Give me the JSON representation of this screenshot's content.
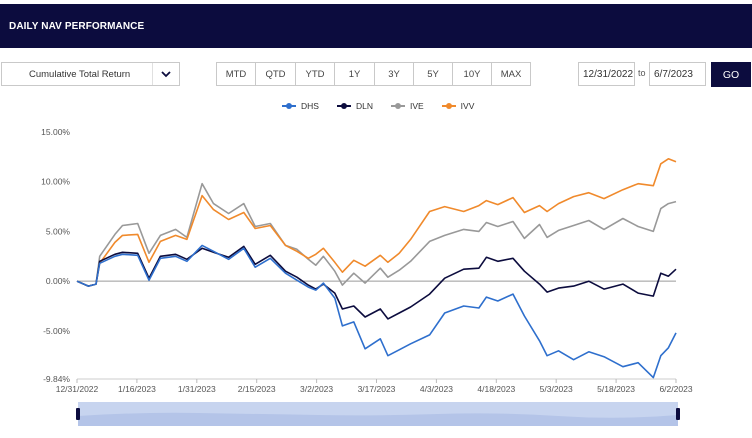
{
  "header": {
    "title": "DAILY NAV PERFORMANCE"
  },
  "controls": {
    "return_type": "Cumulative Total Return",
    "ranges": [
      "MTD",
      "QTD",
      "YTD",
      "1Y",
      "3Y",
      "5Y",
      "10Y",
      "MAX"
    ],
    "start_date": "12/31/2022",
    "to_label": "to",
    "end_date": "6/7/2023",
    "go_label": "GO"
  },
  "colors": {
    "DHS": "#2e6fcd",
    "DLN": "#0c0c3e",
    "IVE": "#999999",
    "IVV": "#f08a2c",
    "header": "#0c0c3e"
  },
  "chart_data": {
    "type": "line",
    "title": "",
    "xlabel": "",
    "ylabel": "",
    "x_ticks": [
      "12/31/2022",
      "1/16/2023",
      "1/31/2023",
      "2/15/2023",
      "3/2/2023",
      "3/17/2023",
      "4/3/2023",
      "4/18/2023",
      "5/3/2023",
      "5/18/2023",
      "6/2/2023"
    ],
    "y_ticks": [
      "15.00%",
      "10.00%",
      "5.00%",
      "0.00%",
      "-5.00%",
      "-9.84%"
    ],
    "y_tick_values": [
      15,
      10,
      5,
      0,
      -5,
      -9.84
    ],
    "ylim": [
      -9.84,
      15
    ],
    "x_domain": [
      "2022-12-31",
      "2023-06-07"
    ],
    "series": [
      {
        "name": "DHS",
        "points": [
          [
            "2022-12-31",
            0
          ],
          [
            "2023-01-03",
            -0.5
          ],
          [
            "2023-01-05",
            -0.3
          ],
          [
            "2023-01-06",
            1.8
          ],
          [
            "2023-01-10",
            2.5
          ],
          [
            "2023-01-12",
            2.7
          ],
          [
            "2023-01-16",
            2.6
          ],
          [
            "2023-01-19",
            0.1
          ],
          [
            "2023-01-22",
            2.3
          ],
          [
            "2023-01-26",
            2.5
          ],
          [
            "2023-01-29",
            2.0
          ],
          [
            "2023-02-02",
            3.6
          ],
          [
            "2023-02-05",
            3.0
          ],
          [
            "2023-02-09",
            2.2
          ],
          [
            "2023-02-13",
            3.3
          ],
          [
            "2023-02-16",
            1.4
          ],
          [
            "2023-02-20",
            2.3
          ],
          [
            "2023-02-24",
            0.8
          ],
          [
            "2023-02-27",
            0.1
          ],
          [
            "2023-03-02",
            -0.6
          ],
          [
            "2023-03-04",
            -0.9
          ],
          [
            "2023-03-06",
            -0.2
          ],
          [
            "2023-03-09",
            -1.7
          ],
          [
            "2023-03-11",
            -4.5
          ],
          [
            "2023-03-14",
            -4.1
          ],
          [
            "2023-03-17",
            -6.8
          ],
          [
            "2023-03-21",
            -5.8
          ],
          [
            "2023-03-23",
            -7.5
          ],
          [
            "2023-03-26",
            -6.9
          ],
          [
            "2023-03-29",
            -6.3
          ],
          [
            "2023-04-03",
            -5.4
          ],
          [
            "2023-04-07",
            -3.2
          ],
          [
            "2023-04-12",
            -2.5
          ],
          [
            "2023-04-16",
            -2.7
          ],
          [
            "2023-04-18",
            -1.6
          ],
          [
            "2023-04-21",
            -2.0
          ],
          [
            "2023-04-25",
            -1.3
          ],
          [
            "2023-04-28",
            -3.5
          ],
          [
            "2023-05-02",
            -6.0
          ],
          [
            "2023-05-04",
            -7.5
          ],
          [
            "2023-05-07",
            -7.0
          ],
          [
            "2023-05-11",
            -7.9
          ],
          [
            "2023-05-15",
            -7.1
          ],
          [
            "2023-05-19",
            -7.6
          ],
          [
            "2023-05-24",
            -8.6
          ],
          [
            "2023-05-28",
            -8.2
          ],
          [
            "2023-06-01",
            -9.7
          ],
          [
            "2023-06-03",
            -7.5
          ],
          [
            "2023-06-05",
            -6.7
          ],
          [
            "2023-06-07",
            -5.2
          ]
        ]
      },
      {
        "name": "DLN",
        "points": [
          [
            "2022-12-31",
            0
          ],
          [
            "2023-01-03",
            -0.5
          ],
          [
            "2023-01-05",
            -0.3
          ],
          [
            "2023-01-06",
            2.0
          ],
          [
            "2023-01-10",
            2.7
          ],
          [
            "2023-01-12",
            2.9
          ],
          [
            "2023-01-16",
            2.8
          ],
          [
            "2023-01-19",
            0.3
          ],
          [
            "2023-01-22",
            2.5
          ],
          [
            "2023-01-26",
            2.7
          ],
          [
            "2023-01-29",
            2.2
          ],
          [
            "2023-02-02",
            3.3
          ],
          [
            "2023-02-05",
            2.9
          ],
          [
            "2023-02-09",
            2.4
          ],
          [
            "2023-02-13",
            3.5
          ],
          [
            "2023-02-16",
            1.7
          ],
          [
            "2023-02-20",
            2.6
          ],
          [
            "2023-02-24",
            1.0
          ],
          [
            "2023-02-27",
            0.4
          ],
          [
            "2023-03-02",
            -0.4
          ],
          [
            "2023-03-04",
            -0.8
          ],
          [
            "2023-03-06",
            -0.3
          ],
          [
            "2023-03-09",
            -1.2
          ],
          [
            "2023-03-11",
            -2.8
          ],
          [
            "2023-03-14",
            -2.5
          ],
          [
            "2023-03-17",
            -3.6
          ],
          [
            "2023-03-21",
            -2.8
          ],
          [
            "2023-03-23",
            -3.8
          ],
          [
            "2023-03-26",
            -3.2
          ],
          [
            "2023-03-29",
            -2.6
          ],
          [
            "2023-04-03",
            -1.3
          ],
          [
            "2023-04-07",
            0.3
          ],
          [
            "2023-04-12",
            1.2
          ],
          [
            "2023-04-16",
            1.3
          ],
          [
            "2023-04-18",
            2.4
          ],
          [
            "2023-04-21",
            2.0
          ],
          [
            "2023-04-25",
            2.3
          ],
          [
            "2023-04-28",
            1.0
          ],
          [
            "2023-05-02",
            -0.3
          ],
          [
            "2023-05-04",
            -1.1
          ],
          [
            "2023-05-07",
            -0.7
          ],
          [
            "2023-05-11",
            -0.5
          ],
          [
            "2023-05-15",
            0.0
          ],
          [
            "2023-05-19",
            -0.8
          ],
          [
            "2023-05-24",
            -0.3
          ],
          [
            "2023-05-28",
            -1.2
          ],
          [
            "2023-06-01",
            -1.5
          ],
          [
            "2023-06-03",
            0.8
          ],
          [
            "2023-06-05",
            0.5
          ],
          [
            "2023-06-07",
            1.2
          ]
        ]
      },
      {
        "name": "IVE",
        "points": [
          [
            "2022-12-31",
            0
          ],
          [
            "2023-01-03",
            -0.5
          ],
          [
            "2023-01-05",
            -0.3
          ],
          [
            "2023-01-06",
            2.5
          ],
          [
            "2023-01-10",
            4.7
          ],
          [
            "2023-01-12",
            5.6
          ],
          [
            "2023-01-16",
            5.8
          ],
          [
            "2023-01-19",
            2.8
          ],
          [
            "2023-01-22",
            4.6
          ],
          [
            "2023-01-26",
            5.2
          ],
          [
            "2023-01-29",
            4.4
          ],
          [
            "2023-02-02",
            9.8
          ],
          [
            "2023-02-05",
            7.8
          ],
          [
            "2023-02-09",
            6.8
          ],
          [
            "2023-02-13",
            7.8
          ],
          [
            "2023-02-16",
            5.5
          ],
          [
            "2023-02-20",
            5.8
          ],
          [
            "2023-02-24",
            3.6
          ],
          [
            "2023-02-27",
            3.2
          ],
          [
            "2023-03-02",
            2.2
          ],
          [
            "2023-03-04",
            1.6
          ],
          [
            "2023-03-06",
            2.5
          ],
          [
            "2023-03-09",
            1.0
          ],
          [
            "2023-03-11",
            -0.4
          ],
          [
            "2023-03-14",
            0.8
          ],
          [
            "2023-03-17",
            -0.2
          ],
          [
            "2023-03-21",
            1.3
          ],
          [
            "2023-03-23",
            0.4
          ],
          [
            "2023-03-26",
            1.1
          ],
          [
            "2023-03-29",
            2.0
          ],
          [
            "2023-04-03",
            4.0
          ],
          [
            "2023-04-07",
            4.6
          ],
          [
            "2023-04-12",
            5.2
          ],
          [
            "2023-04-16",
            5.0
          ],
          [
            "2023-04-18",
            5.9
          ],
          [
            "2023-04-21",
            5.5
          ],
          [
            "2023-04-25",
            6.0
          ],
          [
            "2023-04-28",
            4.3
          ],
          [
            "2023-05-02",
            5.7
          ],
          [
            "2023-05-04",
            4.4
          ],
          [
            "2023-05-07",
            5.1
          ],
          [
            "2023-05-11",
            5.6
          ],
          [
            "2023-05-15",
            6.1
          ],
          [
            "2023-05-19",
            5.2
          ],
          [
            "2023-05-24",
            6.3
          ],
          [
            "2023-05-28",
            5.5
          ],
          [
            "2023-06-01",
            5.0
          ],
          [
            "2023-06-03",
            7.3
          ],
          [
            "2023-06-05",
            7.8
          ],
          [
            "2023-06-07",
            8.0
          ]
        ]
      },
      {
        "name": "IVV",
        "points": [
          [
            "2022-12-31",
            0
          ],
          [
            "2023-01-03",
            -0.5
          ],
          [
            "2023-01-05",
            -0.3
          ],
          [
            "2023-01-06",
            1.8
          ],
          [
            "2023-01-10",
            3.9
          ],
          [
            "2023-01-12",
            4.6
          ],
          [
            "2023-01-16",
            4.7
          ],
          [
            "2023-01-19",
            1.9
          ],
          [
            "2023-01-22",
            4.0
          ],
          [
            "2023-01-26",
            4.6
          ],
          [
            "2023-01-29",
            4.2
          ],
          [
            "2023-02-02",
            8.6
          ],
          [
            "2023-02-05",
            7.2
          ],
          [
            "2023-02-09",
            6.2
          ],
          [
            "2023-02-13",
            6.9
          ],
          [
            "2023-02-16",
            5.3
          ],
          [
            "2023-02-20",
            5.6
          ],
          [
            "2023-02-24",
            3.6
          ],
          [
            "2023-02-27",
            3.0
          ],
          [
            "2023-03-02",
            2.3
          ],
          [
            "2023-03-04",
            2.7
          ],
          [
            "2023-03-06",
            3.3
          ],
          [
            "2023-03-09",
            1.9
          ],
          [
            "2023-03-11",
            0.9
          ],
          [
            "2023-03-14",
            2.1
          ],
          [
            "2023-03-17",
            1.5
          ],
          [
            "2023-03-21",
            2.6
          ],
          [
            "2023-03-23",
            1.9
          ],
          [
            "2023-03-26",
            2.8
          ],
          [
            "2023-03-29",
            4.2
          ],
          [
            "2023-04-03",
            7.0
          ],
          [
            "2023-04-07",
            7.5
          ],
          [
            "2023-04-12",
            7.0
          ],
          [
            "2023-04-16",
            7.6
          ],
          [
            "2023-04-18",
            8.1
          ],
          [
            "2023-04-21",
            7.7
          ],
          [
            "2023-04-25",
            8.4
          ],
          [
            "2023-04-28",
            6.9
          ],
          [
            "2023-05-02",
            7.6
          ],
          [
            "2023-05-04",
            7.0
          ],
          [
            "2023-05-07",
            7.8
          ],
          [
            "2023-05-11",
            8.5
          ],
          [
            "2023-05-15",
            8.9
          ],
          [
            "2023-05-19",
            8.3
          ],
          [
            "2023-05-24",
            9.2
          ],
          [
            "2023-05-28",
            9.8
          ],
          [
            "2023-06-01",
            9.6
          ],
          [
            "2023-06-03",
            11.8
          ],
          [
            "2023-06-05",
            12.3
          ],
          [
            "2023-06-07",
            12.0
          ]
        ]
      }
    ]
  }
}
